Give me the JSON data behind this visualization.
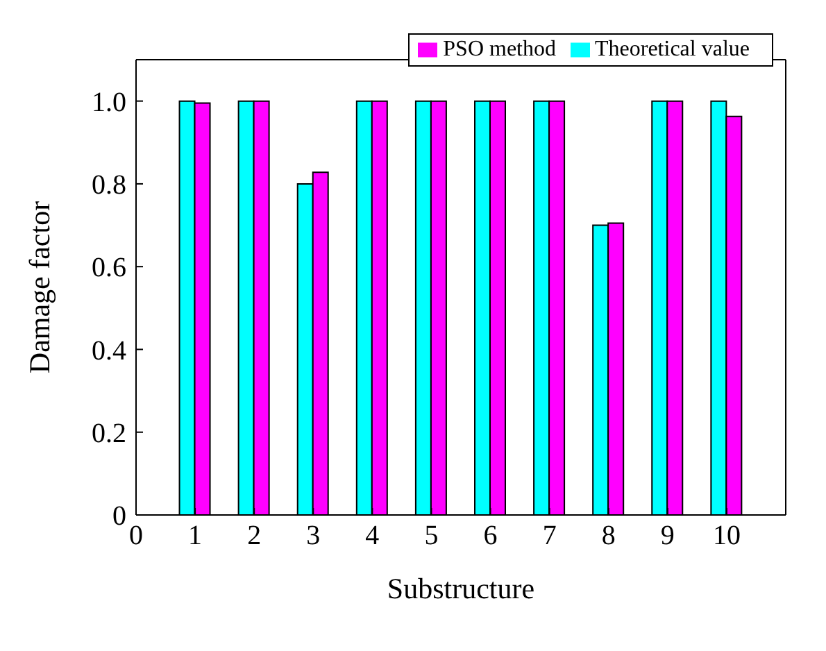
{
  "chart_data": {
    "type": "bar",
    "xlabel": "Substructure",
    "ylabel": "Damage factor",
    "x": [
      1,
      2,
      3,
      4,
      5,
      6,
      7,
      8,
      9,
      10
    ],
    "series": [
      {
        "name": "Theoretical value",
        "color": "#00ffff",
        "values": [
          1.0,
          1.0,
          0.8,
          1.0,
          1.0,
          1.0,
          1.0,
          0.7,
          1.0,
          1.0
        ]
      },
      {
        "name": "PSO method",
        "color": "#ff00ff",
        "values": [
          0.995,
          1.0,
          0.828,
          1.0,
          1.0,
          1.0,
          1.0,
          0.705,
          1.0,
          0.963
        ]
      }
    ],
    "xlim": [
      0,
      11
    ],
    "xticks": [
      0,
      1,
      2,
      3,
      4,
      5,
      6,
      7,
      8,
      9,
      10
    ],
    "ylim": [
      0,
      1.1
    ],
    "yticks": [
      {
        "value": 0,
        "label": "0"
      },
      {
        "value": 0.2,
        "label": "0.2"
      },
      {
        "value": 0.4,
        "label": "0.4"
      },
      {
        "value": 0.6,
        "label": "0.6"
      },
      {
        "value": 0.8,
        "label": "0.8"
      },
      {
        "value": 1.0,
        "label": "1.0"
      }
    ],
    "legend": "top right",
    "grid": false
  }
}
